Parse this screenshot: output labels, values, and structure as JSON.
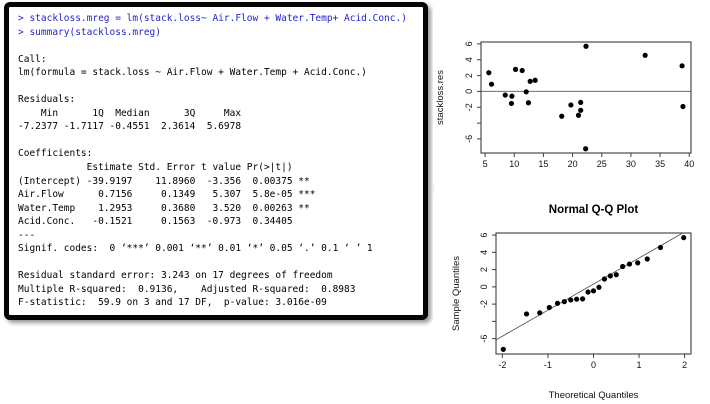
{
  "console": {
    "name": "R console output",
    "input_color": "#2323cd",
    "output_color": "#000000",
    "lines": [
      {
        "type": "input",
        "text": "> stackloss.mreg = lm(stack.loss~ Air.Flow + Water.Temp+ Acid.Conc.)"
      },
      {
        "type": "input",
        "text": "> summary(stackloss.mreg)"
      },
      {
        "type": "output",
        "text": ""
      },
      {
        "type": "output",
        "text": "Call:"
      },
      {
        "type": "output",
        "text": "lm(formula = stack.loss ~ Air.Flow + Water.Temp + Acid.Conc.)"
      },
      {
        "type": "output",
        "text": ""
      },
      {
        "type": "output",
        "text": "Residuals:"
      },
      {
        "type": "output",
        "text": "    Min      1Q  Median      3Q     Max"
      },
      {
        "type": "output",
        "text": "-7.2377 -1.7117 -0.4551  2.3614  5.6978"
      },
      {
        "type": "output",
        "text": ""
      },
      {
        "type": "output",
        "text": "Coefficients:"
      },
      {
        "type": "output",
        "text": "            Estimate Std. Error t value Pr(>|t|)"
      },
      {
        "type": "output",
        "text": "(Intercept) -39.9197    11.8960  -3.356  0.00375 **"
      },
      {
        "type": "output",
        "text": "Air.Flow      0.7156     0.1349   5.307  5.8e-05 ***"
      },
      {
        "type": "output",
        "text": "Water.Temp    1.2953     0.3680   3.520  0.00263 **"
      },
      {
        "type": "output",
        "text": "Acid.Conc.   -0.1521     0.1563  -0.973  0.34405"
      },
      {
        "type": "output",
        "text": "---"
      },
      {
        "type": "output",
        "text": "Signif. codes:  0 ‘***’ 0.001 ‘**’ 0.01 ‘*’ 0.05 ‘.’ 0.1 ‘ ’ 1"
      },
      {
        "type": "output",
        "text": ""
      },
      {
        "type": "output",
        "text": "Residual standard error: 3.243 on 17 degrees of freedom"
      },
      {
        "type": "output",
        "text": "Multiple R-squared:  0.9136,    Adjusted R-squared:  0.8983"
      },
      {
        "type": "output",
        "text": "F-statistic:  59.9 on 3 and 17 DF,  p-value: 3.016e-09"
      }
    ]
  },
  "chart_data": [
    {
      "type": "scatter",
      "title": "",
      "xlabel": "",
      "ylabel": "stackloss.res",
      "xlim": [
        4.3,
        40.3
      ],
      "ylim": [
        -7.78,
        6.24
      ],
      "xticks": [
        5,
        10,
        15,
        20,
        25,
        30,
        35,
        40
      ],
      "xtick_labels": [
        "5",
        "10",
        "15",
        "20",
        "25",
        "30",
        "35",
        "40"
      ],
      "yticks": [
        6,
        4,
        2,
        0,
        -2,
        -4,
        -6
      ],
      "ytick_labels": [
        "6",
        "4",
        "2",
        "0",
        "-2",
        "",
        "-6"
      ],
      "hline": 0,
      "point_color": "#000000",
      "points": [
        [
          38.77,
          3.23
        ],
        [
          38.92,
          -1.91
        ],
        [
          32.44,
          4.56
        ],
        [
          22.3,
          5.7
        ],
        [
          19.71,
          -1.71
        ],
        [
          21.01,
          -3.01
        ],
        [
          21.39,
          -2.39
        ],
        [
          21.39,
          -1.39
        ],
        [
          18.14,
          -3.14
        ],
        [
          12.73,
          1.27
        ],
        [
          11.36,
          2.64
        ],
        [
          10.22,
          2.78
        ],
        [
          12.43,
          -1.43
        ],
        [
          12.05,
          -0.05
        ],
        [
          5.64,
          2.36
        ],
        [
          6.1,
          0.91
        ],
        [
          9.52,
          -1.52
        ],
        [
          8.46,
          -0.46
        ],
        [
          9.6,
          -0.6
        ],
        [
          13.59,
          1.41
        ],
        [
          22.24,
          -7.24
        ]
      ]
    },
    {
      "type": "scatter",
      "title": "Normal Q-Q Plot",
      "xlabel": "Theoretical Quantiles",
      "ylabel": "Sample Quantiles",
      "xlim": [
        -2.14,
        2.14
      ],
      "ylim": [
        -7.78,
        6.24
      ],
      "xticks": [
        -2,
        -1,
        0,
        1,
        2
      ],
      "xtick_labels": [
        "-2",
        "-1",
        "0",
        "1",
        "2"
      ],
      "yticks": [
        6,
        4,
        2,
        0,
        -2,
        -4,
        -6
      ],
      "ytick_labels": [
        "6",
        "4",
        "2",
        "0",
        "-2",
        "",
        "-6"
      ],
      "abline": {
        "intercept": 0.32,
        "slope": 3.02
      },
      "point_color": "#000000",
      "points": [
        [
          -1.98,
          -7.24
        ],
        [
          -1.47,
          -3.14
        ],
        [
          -1.18,
          -3.01
        ],
        [
          -0.97,
          -2.39
        ],
        [
          -0.79,
          -1.91
        ],
        [
          -0.64,
          -1.71
        ],
        [
          -0.5,
          -1.52
        ],
        [
          -0.37,
          -1.43
        ],
        [
          -0.24,
          -1.39
        ],
        [
          -0.12,
          -0.6
        ],
        [
          0.0,
          -0.46
        ],
        [
          0.12,
          -0.05
        ],
        [
          0.24,
          0.91
        ],
        [
          0.37,
          1.27
        ],
        [
          0.5,
          1.41
        ],
        [
          0.64,
          2.36
        ],
        [
          0.79,
          2.64
        ],
        [
          0.97,
          2.78
        ],
        [
          1.18,
          3.23
        ],
        [
          1.47,
          4.56
        ],
        [
          1.98,
          5.7
        ]
      ]
    }
  ]
}
